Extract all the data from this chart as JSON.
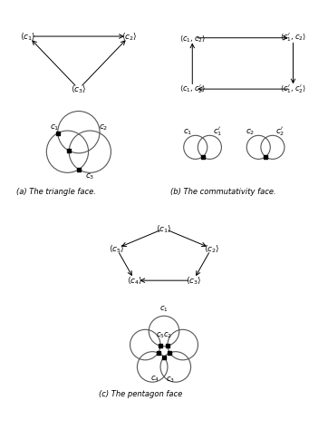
{
  "fig_width": 3.62,
  "fig_height": 4.74,
  "dpi": 100,
  "bg_color": "white",
  "caption_a": "(a) The triangle face.",
  "caption_b": "(b) The commutativity face.",
  "caption_c": "(c) The pentagon face"
}
